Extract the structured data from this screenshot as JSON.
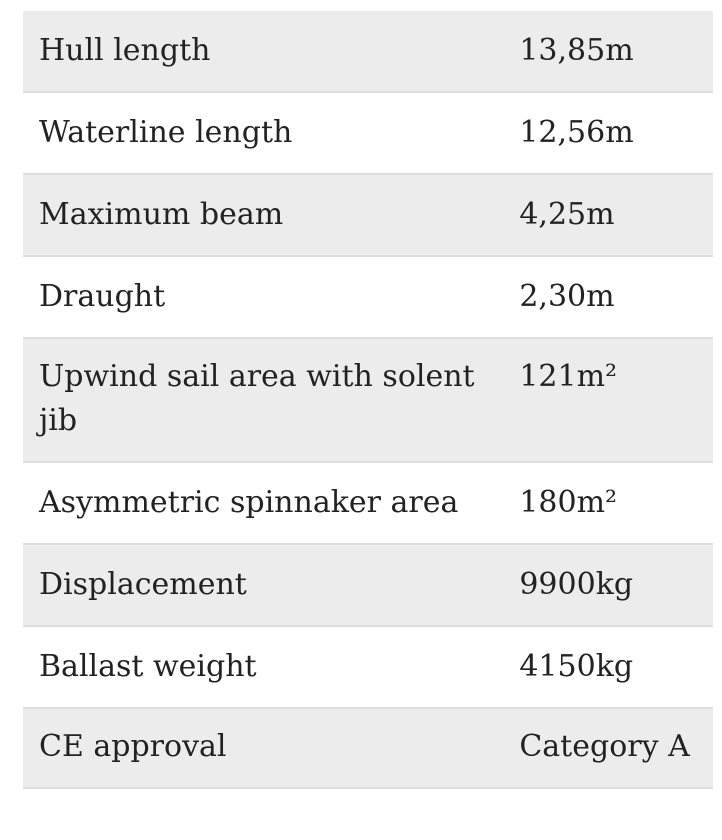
{
  "specs": {
    "rows": [
      {
        "label": "Hull length",
        "value": "13,85m"
      },
      {
        "label": "Waterline length",
        "value": "12,56m"
      },
      {
        "label": "Maximum beam",
        "value": "4,25m"
      },
      {
        "label": "Draught",
        "value": "2,30m"
      },
      {
        "label": "Upwind sail area with solent jib",
        "value": "121m²"
      },
      {
        "label": "Asymmetric spinnaker area",
        "value": "180m²"
      },
      {
        "label": "Displacement",
        "value": "9900kg"
      },
      {
        "label": "Ballast weight",
        "value": "4150kg"
      },
      {
        "label": "CE approval",
        "value": "Category A"
      }
    ]
  }
}
